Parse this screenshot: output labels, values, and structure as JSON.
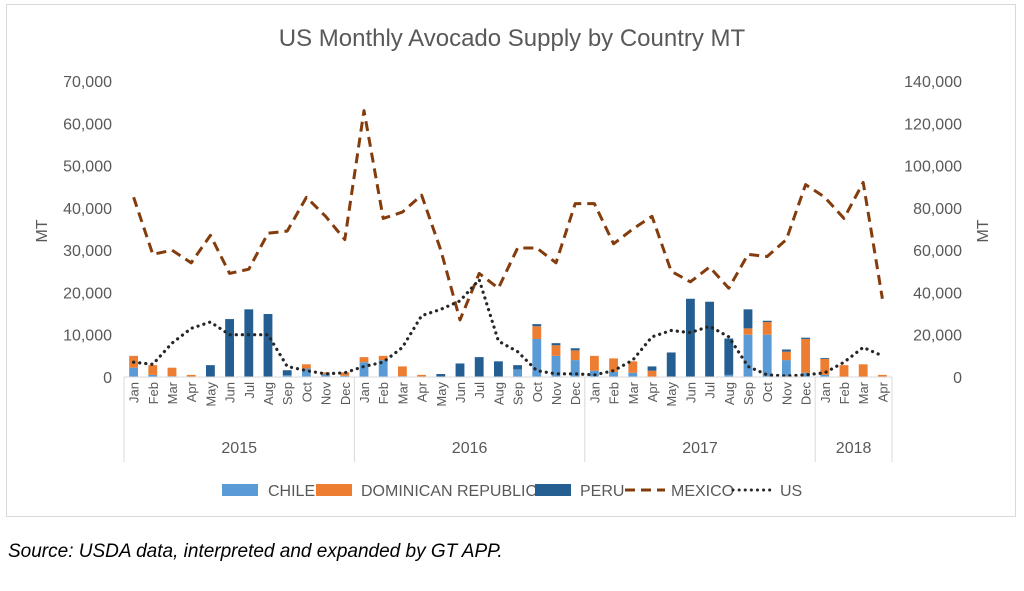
{
  "caption": "Source: USDA data, interpreted and expanded by GT APP.",
  "chart_data": {
    "type": "bar",
    "title": "US Monthly Avocado Supply by Country MT",
    "ylabel": "MT",
    "y2label": "MT",
    "ylim": [
      0,
      70000
    ],
    "y2lim": [
      0,
      140000
    ],
    "yticks": [
      "0",
      "10,000",
      "20,000",
      "30,000",
      "40,000",
      "50,000",
      "60,000",
      "70,000"
    ],
    "y2ticks": [
      "0",
      "20,000",
      "40,000",
      "60,000",
      "80,000",
      "100,000",
      "120,000",
      "140,000"
    ],
    "grid": false,
    "legend_position": "bottom",
    "categories": [
      "Jan",
      "Feb",
      "Mar",
      "Apr",
      "May",
      "Jun",
      "Jul",
      "Aug",
      "Sep",
      "Oct",
      "Nov",
      "Dec",
      "Jan",
      "Feb",
      "Mar",
      "Apr",
      "May",
      "Jun",
      "Jul",
      "Aug",
      "Sep",
      "Oct",
      "Nov",
      "Dec",
      "Jan",
      "Feb",
      "Mar",
      "Apr",
      "May",
      "Jun",
      "Jul",
      "Aug",
      "Sep",
      "Oct",
      "Nov",
      "Dec",
      "Jan",
      "Feb",
      "Mar",
      "Apr"
    ],
    "year_groups": [
      {
        "label": "2015",
        "count": 12
      },
      {
        "label": "2016",
        "count": 12
      },
      {
        "label": "2017",
        "count": 12
      },
      {
        "label": "2018",
        "count": 4
      }
    ],
    "series": [
      {
        "name": "CHILE",
        "kind": "bar",
        "axis": "left",
        "color": "#5b9bd5",
        "values": [
          2200,
          500,
          200,
          0,
          0,
          0,
          0,
          0,
          400,
          2000,
          600,
          300,
          3500,
          4000,
          200,
          0,
          0,
          0,
          0,
          0,
          1800,
          9000,
          5000,
          4000,
          1500,
          1200,
          1000,
          0,
          0,
          0,
          0,
          500,
          10000,
          10000,
          4000,
          1000,
          500,
          0,
          0,
          0
        ]
      },
      {
        "name": "DOMINICAN REPUBLIC",
        "kind": "bar",
        "axis": "left",
        "color": "#ed7d31",
        "values": [
          2800,
          2300,
          2000,
          500,
          0,
          0,
          0,
          0,
          0,
          1000,
          500,
          800,
          1200,
          1000,
          2300,
          500,
          0,
          0,
          0,
          0,
          0,
          3000,
          2500,
          2300,
          3500,
          3200,
          2700,
          1500,
          0,
          0,
          0,
          0,
          1500,
          3000,
          2000,
          8000,
          3800,
          2800,
          3000,
          500
        ]
      },
      {
        "name": "PERU",
        "kind": "bar",
        "axis": "left",
        "color": "#255e91",
        "values": [
          0,
          0,
          0,
          0,
          2800,
          13700,
          16000,
          14900,
          1200,
          0,
          0,
          0,
          0,
          0,
          0,
          0,
          700,
          3200,
          4700,
          3700,
          1000,
          500,
          500,
          500,
          0,
          0,
          0,
          1000,
          5800,
          18500,
          17800,
          8600,
          4500,
          300,
          500,
          300,
          200,
          0,
          0,
          0
        ]
      },
      {
        "name": "MEXICO",
        "kind": "line",
        "axis": "right",
        "color": "#843c0c",
        "dash": "dashed",
        "values": [
          85000,
          58000,
          60000,
          54000,
          67000,
          49000,
          51000,
          68000,
          69000,
          85000,
          76000,
          65000,
          126000,
          75000,
          78000,
          86000,
          60000,
          27000,
          49000,
          42000,
          61000,
          61000,
          54000,
          82000,
          82000,
          63000,
          70000,
          76000,
          50000,
          45000,
          52000,
          42000,
          58000,
          57000,
          65000,
          91000,
          85000,
          75000,
          92000,
          37000
        ]
      },
      {
        "name": "US",
        "kind": "line",
        "axis": "right",
        "color": "#262626",
        "dash": "dotted",
        "values": [
          7000,
          6000,
          16000,
          23000,
          26000,
          20000,
          20000,
          20000,
          5000,
          3000,
          1500,
          2000,
          5000,
          7000,
          14000,
          29000,
          32000,
          36000,
          46000,
          17000,
          12000,
          3000,
          1500,
          1500,
          1000,
          3000,
          8000,
          19000,
          22000,
          21000,
          24000,
          19000,
          5000,
          1000,
          500,
          1000,
          2000,
          7000,
          14000,
          10000
        ]
      }
    ]
  }
}
